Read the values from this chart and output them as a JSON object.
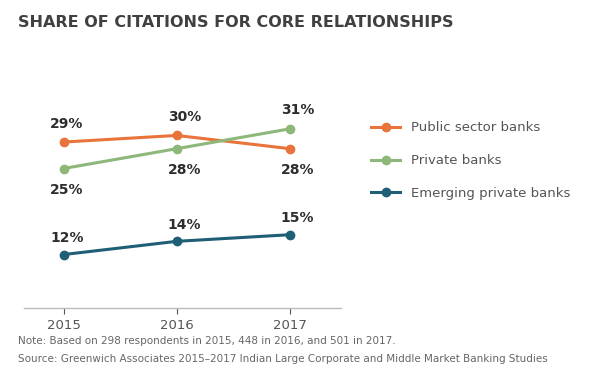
{
  "title": "SHARE OF CITATIONS FOR CORE RELATIONSHIPS",
  "years": [
    2015,
    2016,
    2017
  ],
  "series": [
    {
      "label": "Public sector banks",
      "values": [
        29,
        30,
        28
      ],
      "color": "#E8743B",
      "marker": "o"
    },
    {
      "label": "Private banks",
      "values": [
        25,
        28,
        31
      ],
      "color": "#8DB87A",
      "marker": "o"
    },
    {
      "label": "Emerging private banks",
      "values": [
        12,
        14,
        15
      ],
      "color": "#1F5F75",
      "marker": "o"
    }
  ],
  "annotations": {
    "Public sector banks": {
      "2015": {
        "xoff": -0.12,
        "yoff": 2.8,
        "ha": "left"
      },
      "2016": {
        "xoff": -0.08,
        "yoff": 2.8,
        "ha": "left"
      },
      "2017": {
        "xoff": -0.08,
        "yoff": -3.2,
        "ha": "left"
      }
    },
    "Private banks": {
      "2015": {
        "xoff": -0.12,
        "yoff": -3.2,
        "ha": "left"
      },
      "2016": {
        "xoff": -0.08,
        "yoff": -3.2,
        "ha": "left"
      },
      "2017": {
        "xoff": -0.08,
        "yoff": 2.8,
        "ha": "left"
      }
    },
    "Emerging private banks": {
      "2015": {
        "xoff": -0.12,
        "yoff": 2.5,
        "ha": "left"
      },
      "2016": {
        "xoff": -0.08,
        "yoff": 2.5,
        "ha": "left"
      },
      "2017": {
        "xoff": -0.08,
        "yoff": 2.5,
        "ha": "left"
      }
    }
  },
  "note_line1": "Note: Based on 298 respondents in 2015, 448 in 2016, and 501 in 2017.",
  "note_line2": "Source: Greenwich Associates 2015–2017 Indian Large Corporate and Middle Market Banking Studies",
  "ylim": [
    4,
    38
  ],
  "xlim": [
    2014.65,
    2017.45
  ],
  "background_color": "#ffffff",
  "title_color": "#404040",
  "title_fontsize": 11.5,
  "tick_fontsize": 9.5,
  "note_fontsize": 7.5,
  "legend_fontsize": 9.5,
  "annotation_fontsize": 10,
  "linewidth": 2.2,
  "markersize": 6
}
